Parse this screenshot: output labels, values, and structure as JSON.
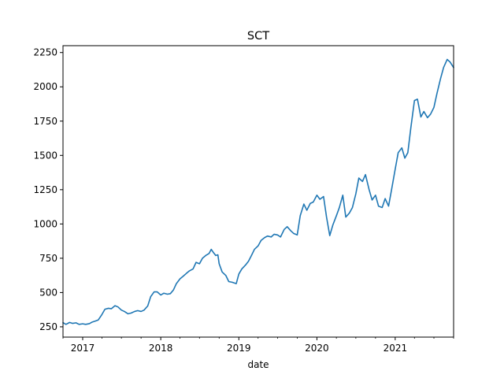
{
  "chart_data": {
    "type": "line",
    "title": "SCT",
    "xlabel": "date",
    "ylabel": "",
    "x_range": [
      "2016-10-01",
      "2021-10-01"
    ],
    "ylim": [
      175,
      2300
    ],
    "grid": false,
    "legend": "none",
    "xticks": [
      {
        "date": "2017-01-01",
        "label": "2017"
      },
      {
        "date": "2018-01-01",
        "label": "2018"
      },
      {
        "date": "2019-01-01",
        "label": "2019"
      },
      {
        "date": "2020-01-01",
        "label": "2020"
      },
      {
        "date": "2021-01-01",
        "label": "2021"
      }
    ],
    "yticks": [
      250,
      500,
      750,
      1000,
      1250,
      1500,
      1750,
      2000,
      2250
    ],
    "series": [
      {
        "name": "",
        "color": "#1f77b4",
        "points": [
          [
            "2016-10-01",
            280
          ],
          [
            "2016-10-15",
            268
          ],
          [
            "2016-11-01",
            282
          ],
          [
            "2016-11-15",
            275
          ],
          [
            "2016-12-01",
            279
          ],
          [
            "2016-12-15",
            268
          ],
          [
            "2017-01-01",
            272
          ],
          [
            "2017-01-15",
            268
          ],
          [
            "2017-02-01",
            273
          ],
          [
            "2017-02-15",
            285
          ],
          [
            "2017-03-01",
            292
          ],
          [
            "2017-03-15",
            300
          ],
          [
            "2017-04-01",
            340
          ],
          [
            "2017-04-15",
            378
          ],
          [
            "2017-05-01",
            385
          ],
          [
            "2017-05-15",
            382
          ],
          [
            "2017-06-01",
            404
          ],
          [
            "2017-06-15",
            395
          ],
          [
            "2017-07-01",
            372
          ],
          [
            "2017-07-15",
            362
          ],
          [
            "2017-08-01",
            345
          ],
          [
            "2017-08-15",
            350
          ],
          [
            "2017-09-01",
            362
          ],
          [
            "2017-09-15",
            368
          ],
          [
            "2017-10-01",
            362
          ],
          [
            "2017-10-15",
            372
          ],
          [
            "2017-11-01",
            402
          ],
          [
            "2017-11-15",
            470
          ],
          [
            "2017-12-01",
            505
          ],
          [
            "2017-12-15",
            505
          ],
          [
            "2018-01-01",
            482
          ],
          [
            "2018-01-15",
            495
          ],
          [
            "2018-02-01",
            488
          ],
          [
            "2018-02-15",
            492
          ],
          [
            "2018-03-01",
            518
          ],
          [
            "2018-03-15",
            565
          ],
          [
            "2018-04-01",
            600
          ],
          [
            "2018-04-15",
            618
          ],
          [
            "2018-05-01",
            640
          ],
          [
            "2018-05-15",
            658
          ],
          [
            "2018-06-01",
            672
          ],
          [
            "2018-06-15",
            720
          ],
          [
            "2018-07-01",
            710
          ],
          [
            "2018-07-15",
            750
          ],
          [
            "2018-08-01",
            772
          ],
          [
            "2018-08-15",
            785
          ],
          [
            "2018-08-25",
            815
          ],
          [
            "2018-09-05",
            790
          ],
          [
            "2018-09-15",
            770
          ],
          [
            "2018-09-25",
            775
          ],
          [
            "2018-10-01",
            710
          ],
          [
            "2018-10-15",
            650
          ],
          [
            "2018-11-01",
            625
          ],
          [
            "2018-11-15",
            580
          ],
          [
            "2018-12-01",
            575
          ],
          [
            "2018-12-20",
            565
          ],
          [
            "2019-01-01",
            635
          ],
          [
            "2019-01-15",
            672
          ],
          [
            "2019-02-01",
            700
          ],
          [
            "2019-02-15",
            728
          ],
          [
            "2019-03-01",
            770
          ],
          [
            "2019-03-15",
            815
          ],
          [
            "2019-04-01",
            840
          ],
          [
            "2019-04-15",
            880
          ],
          [
            "2019-05-01",
            900
          ],
          [
            "2019-05-15",
            912
          ],
          [
            "2019-06-01",
            905
          ],
          [
            "2019-06-15",
            925
          ],
          [
            "2019-07-01",
            920
          ],
          [
            "2019-07-15",
            905
          ],
          [
            "2019-08-01",
            960
          ],
          [
            "2019-08-15",
            980
          ],
          [
            "2019-09-01",
            950
          ],
          [
            "2019-09-15",
            930
          ],
          [
            "2019-10-01",
            920
          ],
          [
            "2019-10-15",
            1060
          ],
          [
            "2019-11-01",
            1145
          ],
          [
            "2019-11-15",
            1100
          ],
          [
            "2019-12-01",
            1150
          ],
          [
            "2019-12-15",
            1160
          ],
          [
            "2020-01-01",
            1210
          ],
          [
            "2020-01-15",
            1180
          ],
          [
            "2020-02-01",
            1200
          ],
          [
            "2020-02-15",
            1050
          ],
          [
            "2020-03-01",
            915
          ],
          [
            "2020-03-15",
            990
          ],
          [
            "2020-04-01",
            1060
          ],
          [
            "2020-04-15",
            1120
          ],
          [
            "2020-05-01",
            1210
          ],
          [
            "2020-05-15",
            1050
          ],
          [
            "2020-06-01",
            1080
          ],
          [
            "2020-06-15",
            1120
          ],
          [
            "2020-07-01",
            1220
          ],
          [
            "2020-07-15",
            1335
          ],
          [
            "2020-08-01",
            1310
          ],
          [
            "2020-08-15",
            1360
          ],
          [
            "2020-09-01",
            1250
          ],
          [
            "2020-09-15",
            1175
          ],
          [
            "2020-10-01",
            1210
          ],
          [
            "2020-10-15",
            1130
          ],
          [
            "2020-11-01",
            1120
          ],
          [
            "2020-11-15",
            1185
          ],
          [
            "2020-12-01",
            1130
          ],
          [
            "2020-12-15",
            1250
          ],
          [
            "2021-01-01",
            1400
          ],
          [
            "2021-01-15",
            1520
          ],
          [
            "2021-02-01",
            1555
          ],
          [
            "2021-02-15",
            1480
          ],
          [
            "2021-03-01",
            1520
          ],
          [
            "2021-03-15",
            1700
          ],
          [
            "2021-04-01",
            1900
          ],
          [
            "2021-04-15",
            1910
          ],
          [
            "2021-05-01",
            1780
          ],
          [
            "2021-05-15",
            1820
          ],
          [
            "2021-06-01",
            1775
          ],
          [
            "2021-06-15",
            1800
          ],
          [
            "2021-07-01",
            1850
          ],
          [
            "2021-07-15",
            1950
          ],
          [
            "2021-08-01",
            2060
          ],
          [
            "2021-08-15",
            2140
          ],
          [
            "2021-09-01",
            2200
          ],
          [
            "2021-09-15",
            2180
          ],
          [
            "2021-10-01",
            2140
          ]
        ]
      }
    ]
  }
}
